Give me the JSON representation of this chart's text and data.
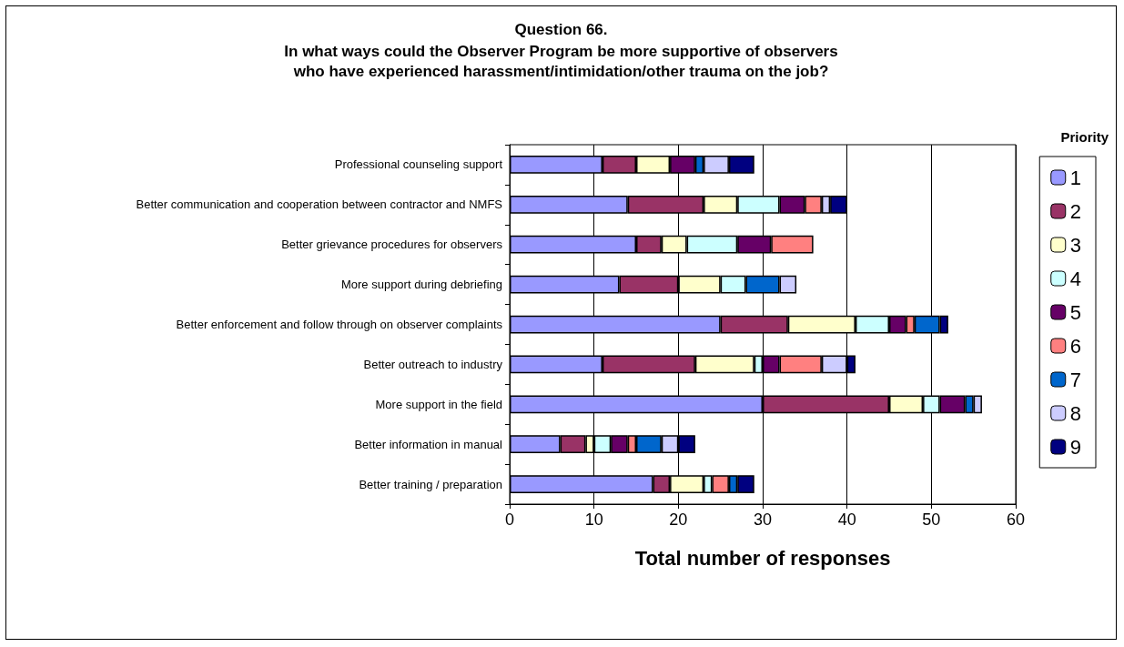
{
  "chart_data": {
    "type": "bar",
    "orientation": "horizontal",
    "stacked": true,
    "title": "Question 66.",
    "subtitle": "In what ways could the Observer Program be more supportive of observers\nwho have experienced harassment/intimidation/other trauma on the job?",
    "xlabel": "Total number of responses",
    "legend_title": "Priority",
    "categories": [
      "Professional counseling support",
      "Better communication and cooperation between contractor and NMFS",
      "Better grievance procedures for observers",
      "More support during debriefing",
      "Better enforcement and follow through on observer complaints",
      "Better outreach to industry",
      "More support in the field",
      "Better information in manual",
      "Better training / preparation"
    ],
    "series": [
      {
        "name": "1",
        "color": "#9999ff",
        "values": [
          11,
          14,
          15,
          13,
          25,
          11,
          30,
          6,
          17
        ]
      },
      {
        "name": "2",
        "color": "#993366",
        "values": [
          4,
          9,
          3,
          7,
          8,
          11,
          15,
          3,
          2
        ]
      },
      {
        "name": "3",
        "color": "#ffffcc",
        "values": [
          4,
          4,
          3,
          5,
          8,
          7,
          4,
          1,
          4
        ]
      },
      {
        "name": "4",
        "color": "#ccffff",
        "values": [
          0,
          5,
          6,
          3,
          4,
          1,
          2,
          2,
          1
        ]
      },
      {
        "name": "5",
        "color": "#660066",
        "values": [
          3,
          3,
          4,
          0,
          2,
          2,
          3,
          2,
          0
        ]
      },
      {
        "name": "6",
        "color": "#ff8080",
        "values": [
          0,
          2,
          5,
          0,
          1,
          5,
          0,
          1,
          2
        ]
      },
      {
        "name": "7",
        "color": "#0066cc",
        "values": [
          1,
          0,
          0,
          4,
          3,
          0,
          1,
          3,
          1
        ]
      },
      {
        "name": "8",
        "color": "#ccccff",
        "values": [
          3,
          1,
          0,
          2,
          0,
          3,
          1,
          2,
          0
        ]
      },
      {
        "name": "9",
        "color": "#000080",
        "values": [
          3,
          2,
          0,
          0,
          1,
          1,
          0,
          2,
          2
        ]
      }
    ],
    "xlim": [
      0,
      60
    ],
    "xticks": [
      0,
      10,
      20,
      30,
      40,
      50,
      60
    ],
    "grid": "x",
    "legend": "right"
  }
}
